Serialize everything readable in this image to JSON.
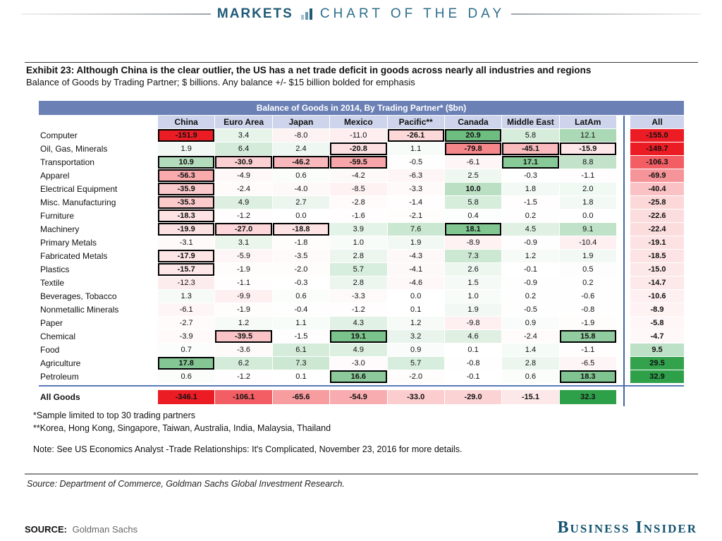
{
  "masthead": {
    "section": "MARKETS",
    "title": "CHART OF THE DAY",
    "icon": "bar-chart-icon"
  },
  "exhibit": {
    "title": "Exhibit 23: Although China is the clear outlier, the US has a net trade deficit in goods across nearly all industries and regions",
    "subtitle": "Balance of Goods by Trading Partner; $ billions. Any balance +/- $15 billion bolded for emphasis",
    "footnote1": "*Sample limited to top 30 trading partners",
    "footnote2": "**Korea, Hong Kong, Singapore, Taiwan, Australia, India, Malaysia, Thailand",
    "note": "Note: See US Economics Analyst -Trade Relationships: It's Complicated, November 23, 2016 for more details.",
    "source_line": "Source: Department of Commerce, Goldman Sachs Global Investment Research."
  },
  "footer": {
    "source_label": "SOURCE:",
    "source_value": "Goldman Sachs",
    "brand": "Business Insider"
  },
  "colors": {
    "accent_red": "#ec1c24",
    "accent_green": "#2fa04a",
    "title_bar": "#6b80b4",
    "header_row": "#cdd4eb",
    "divider_blue": "#44679f",
    "masthead_teal": "#1e5a78",
    "brand_teal": "#14536f"
  },
  "chart_data": {
    "type": "heatmap",
    "title": "Balance of Goods in 2014, By Trading Partner* ($bn)",
    "units": "$ billions",
    "partners": [
      "China",
      "Euro Area",
      "Japan",
      "Mexico",
      "Pacific**",
      "Canada",
      "Middle East",
      "LatAm"
    ],
    "all_label": "All",
    "emphasis_threshold": 15,
    "emphasis_overrides": [
      {
        "row": 2,
        "col": 0,
        "style": "box"
      },
      {
        "row": 4,
        "col": 5,
        "style": "bold"
      }
    ],
    "rows": [
      {
        "label": "Computer",
        "values": [
          -151.9,
          3.4,
          -8.0,
          -11.0,
          -26.1,
          20.9,
          5.8,
          12.1
        ],
        "all": -155.0
      },
      {
        "label": "Oil, Gas, Minerals",
        "values": [
          1.9,
          6.4,
          2.4,
          -20.8,
          1.1,
          -79.8,
          -45.1,
          -15.9
        ],
        "all": -149.7
      },
      {
        "label": "Transportation",
        "values": [
          10.9,
          -30.9,
          -46.2,
          -59.5,
          -0.5,
          -6.1,
          17.1,
          8.8
        ],
        "all": -106.3
      },
      {
        "label": "Apparel",
        "values": [
          -56.3,
          -4.9,
          0.6,
          -4.2,
          -6.3,
          2.5,
          -0.3,
          -1.1
        ],
        "all": -69.9
      },
      {
        "label": "Electrical Equipment",
        "values": [
          -35.9,
          -2.4,
          -4.0,
          -8.5,
          -3.3,
          10.0,
          1.8,
          2.0
        ],
        "all": -40.4
      },
      {
        "label": "Misc. Manufacturing",
        "values": [
          -35.3,
          4.9,
          2.7,
          -2.8,
          -1.4,
          5.8,
          -1.5,
          1.8
        ],
        "all": -25.8
      },
      {
        "label": "Furniture",
        "values": [
          -18.3,
          -1.2,
          0.0,
          -1.6,
          -2.1,
          0.4,
          0.2,
          0.0
        ],
        "all": -22.6
      },
      {
        "label": "Machinery",
        "values": [
          -19.9,
          -27.0,
          -18.8,
          3.9,
          7.6,
          18.1,
          4.5,
          9.1
        ],
        "all": -22.4
      },
      {
        "label": "Primary Metals",
        "values": [
          -3.1,
          3.1,
          -1.8,
          1.0,
          1.9,
          -8.9,
          -0.9,
          -10.4
        ],
        "all": -19.1
      },
      {
        "label": "Fabricated Metals",
        "values": [
          -17.9,
          -5.9,
          -3.5,
          2.8,
          -4.3,
          7.3,
          1.2,
          1.9
        ],
        "all": -18.5
      },
      {
        "label": "Plastics",
        "values": [
          -15.7,
          -1.9,
          -2.0,
          5.7,
          -4.1,
          2.6,
          -0.1,
          0.5
        ],
        "all": -15.0
      },
      {
        "label": "Textile",
        "values": [
          -12.3,
          -1.1,
          -0.3,
          2.8,
          -4.6,
          1.5,
          -0.9,
          0.2
        ],
        "all": -14.7
      },
      {
        "label": "Beverages, Tobacco",
        "values": [
          1.3,
          -9.9,
          0.6,
          -3.3,
          0.0,
          1.0,
          0.2,
          -0.6
        ],
        "all": -10.6
      },
      {
        "label": "Nonmetallic Minerals",
        "values": [
          -6.1,
          -1.9,
          -0.4,
          -1.2,
          0.1,
          1.9,
          -0.5,
          -0.8
        ],
        "all": -8.9
      },
      {
        "label": "Paper",
        "values": [
          -2.7,
          1.2,
          1.1,
          4.3,
          1.2,
          -9.8,
          0.9,
          -1.9
        ],
        "all": -5.8
      },
      {
        "label": "Chemical",
        "values": [
          -3.9,
          -39.5,
          -1.5,
          19.1,
          3.2,
          4.6,
          -2.4,
          15.8
        ],
        "all": -4.7
      },
      {
        "label": "Food",
        "values": [
          0.7,
          -3.6,
          6.1,
          4.9,
          0.9,
          0.1,
          1.4,
          -1.1
        ],
        "all": 9.5
      },
      {
        "label": "Agriculture",
        "values": [
          17.8,
          6.2,
          7.3,
          -3.0,
          5.7,
          -0.8,
          2.8,
          -6.5
        ],
        "all": 29.5
      },
      {
        "label": "Petroleum",
        "values": [
          0.6,
          -1.2,
          0.1,
          16.6,
          -2.0,
          -0.1,
          0.6,
          18.3
        ],
        "all": 32.9
      }
    ],
    "total_row": {
      "label": "All Goods",
      "values": [
        -346.1,
        -106.1,
        -65.6,
        -54.9,
        -33.0,
        -29.0,
        -15.1,
        32.3
      ]
    }
  }
}
